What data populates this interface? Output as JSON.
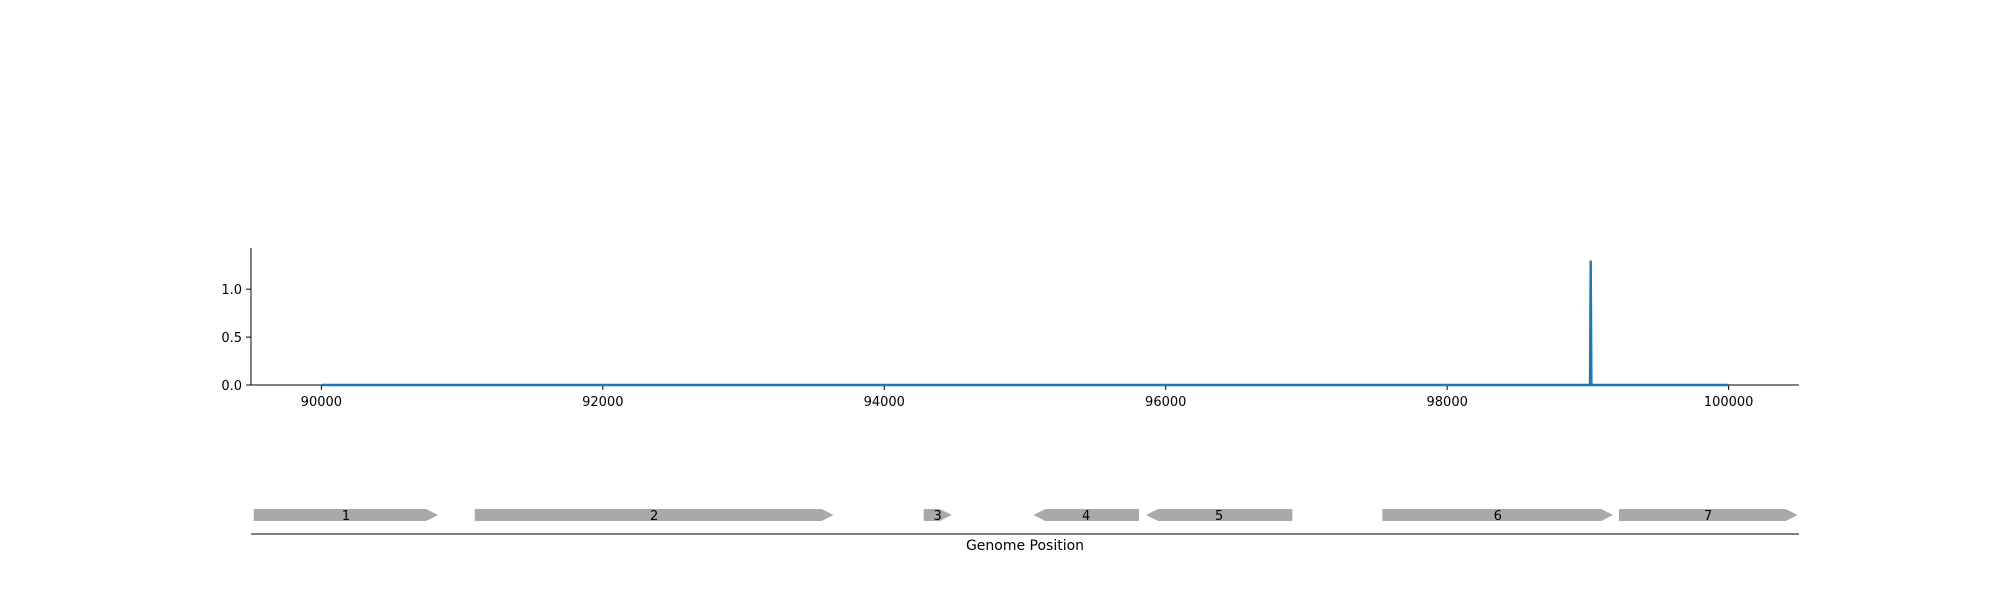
{
  "chart_data": {
    "type": "line",
    "x": [
      90000,
      99015,
      99020,
      99025,
      100000
    ],
    "y": [
      0,
      0,
      1.3,
      0,
      0
    ],
    "xlim": [
      89500,
      100500
    ],
    "ylim": [
      0,
      1.43
    ],
    "xticks": [
      90000,
      92000,
      94000,
      96000,
      98000,
      100000
    ],
    "xtick_labels": [
      "90000",
      "92000",
      "94000",
      "96000",
      "98000",
      "100000"
    ],
    "yticks": [
      0,
      0.5,
      1.0
    ],
    "ytick_labels": [
      "0.0",
      "0.5",
      "1.0"
    ],
    "xlabel": "Genome Position",
    "line_color": "#1f77b4",
    "gene_color": "#a9a9a9",
    "genes": [
      {
        "label": "1",
        "start": 89520,
        "end": 90830,
        "strand": "+"
      },
      {
        "label": "2",
        "start": 91090,
        "end": 93640,
        "strand": "+"
      },
      {
        "label": "3",
        "start": 94280,
        "end": 94480,
        "strand": "+"
      },
      {
        "label": "4",
        "start": 95060,
        "end": 95810,
        "strand": "-"
      },
      {
        "label": "5",
        "start": 95860,
        "end": 96900,
        "strand": "-"
      },
      {
        "label": "6",
        "start": 97540,
        "end": 99180,
        "strand": "+"
      },
      {
        "label": "7",
        "start": 99220,
        "end": 100490,
        "strand": "+"
      }
    ]
  }
}
